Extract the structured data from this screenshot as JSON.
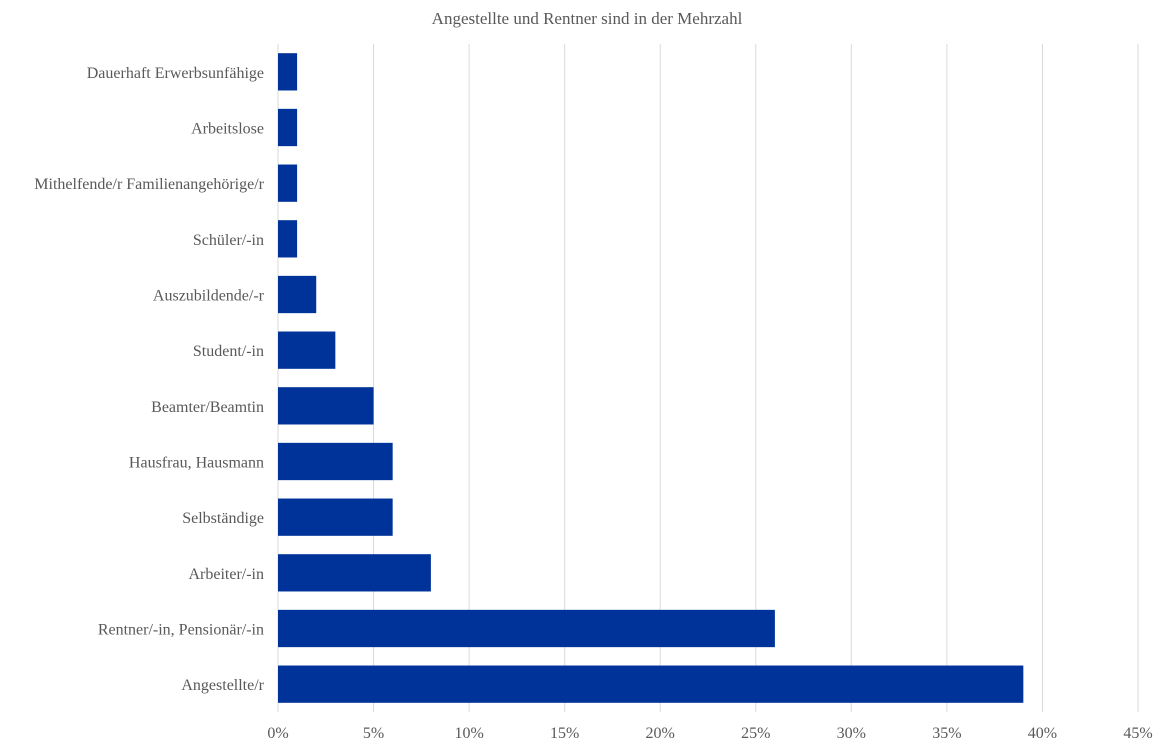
{
  "chart_data": {
    "type": "bar",
    "orientation": "horizontal",
    "title": "Angestellte und Rentner sind in der Mehrzahl",
    "xlabel": "",
    "ylabel": "",
    "categories": [
      "Dauerhaft Erwerbsunfähige",
      "Arbeitslose",
      "Mithelfende/r Familienangehörige/r",
      "Schüler/-in",
      "Auszubildende/-r",
      "Student/-in",
      "Beamter/Beamtin",
      "Hausfrau, Hausmann",
      "Selbständige",
      "Arbeiter/-in",
      "Rentner/-in, Pensionär/-in",
      "Angestellte/r"
    ],
    "values": [
      1,
      1,
      1,
      1,
      2,
      3,
      5,
      6,
      6,
      8,
      26,
      39
    ],
    "value_unit": "%",
    "xlim": [
      0,
      45
    ],
    "x_ticks": [
      "0%",
      "5%",
      "10%",
      "15%",
      "20%",
      "25%",
      "30%",
      "35%",
      "40%",
      "45%"
    ],
    "grid": true,
    "legend": "none",
    "bar_color": "#00339A",
    "grid_color": "#D9D9D9"
  }
}
